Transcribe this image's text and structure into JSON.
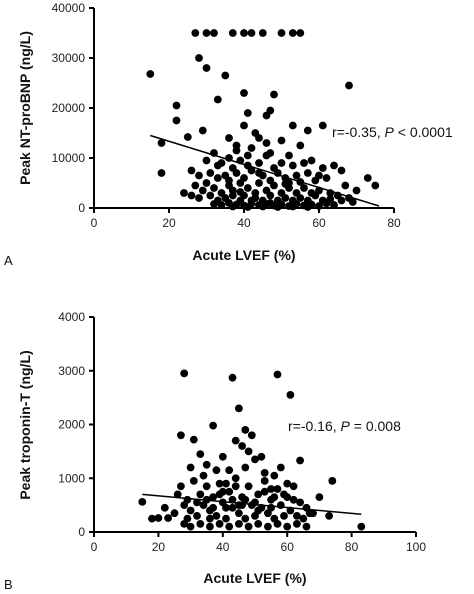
{
  "chart_data": [
    {
      "panel": "A",
      "type": "scatter",
      "xlabel": "Acute  LVEF (%)",
      "ylabel": "Peak NT-proBNP (ng/L)",
      "xlim": [
        0,
        80
      ],
      "ylim": [
        0,
        40000
      ],
      "xticks": [
        "0",
        "20",
        "40",
        "60",
        "80"
      ],
      "yticks": [
        "0",
        "10000",
        "20000",
        "30000",
        "40000"
      ],
      "annotation": {
        "r": "r=-0.35,",
        "p_label": "P",
        "p_value": "< 0.0001"
      },
      "regression": {
        "x": [
          15,
          76
        ],
        "y": [
          14500,
          400
        ]
      },
      "points": [
        [
          27,
          35000
        ],
        [
          30,
          35000
        ],
        [
          32,
          35000
        ],
        [
          37,
          35000
        ],
        [
          40,
          35000
        ],
        [
          42,
          35000
        ],
        [
          45,
          35000
        ],
        [
          50,
          35000
        ],
        [
          53,
          35000
        ],
        [
          55,
          35000
        ],
        [
          15,
          26800
        ],
        [
          28,
          30000
        ],
        [
          30,
          28000
        ],
        [
          35,
          26500
        ],
        [
          22,
          20500
        ],
        [
          22,
          17500
        ],
        [
          40,
          23000
        ],
        [
          48,
          22700
        ],
        [
          33,
          21700
        ],
        [
          47,
          19500
        ],
        [
          41,
          19000
        ],
        [
          46,
          18500
        ],
        [
          68,
          24500
        ],
        [
          29,
          15500
        ],
        [
          25,
          14200
        ],
        [
          36,
          14000
        ],
        [
          44,
          14000
        ],
        [
          50,
          13500
        ],
        [
          18,
          13000
        ],
        [
          32,
          11000
        ],
        [
          38,
          11500
        ],
        [
          42,
          12000
        ],
        [
          47,
          11000
        ],
        [
          52,
          10500
        ],
        [
          55,
          12500
        ],
        [
          40,
          16500
        ],
        [
          43,
          15000
        ],
        [
          30,
          9500
        ],
        [
          34,
          9000
        ],
        [
          36,
          10000
        ],
        [
          39,
          9500
        ],
        [
          41,
          8500
        ],
        [
          44,
          9000
        ],
        [
          46,
          10500
        ],
        [
          48,
          8000
        ],
        [
          50,
          9000
        ],
        [
          53,
          8500
        ],
        [
          56,
          9000
        ],
        [
          58,
          9500
        ],
        [
          61,
          8000
        ],
        [
          64,
          8500
        ],
        [
          66,
          7500
        ],
        [
          57,
          15500
        ],
        [
          61,
          16500
        ],
        [
          53,
          16500
        ],
        [
          18,
          7000
        ],
        [
          26,
          7500
        ],
        [
          28,
          6500
        ],
        [
          31,
          7000
        ],
        [
          33,
          6000
        ],
        [
          35,
          6500
        ],
        [
          37,
          8000
        ],
        [
          38,
          7000
        ],
        [
          40,
          6000
        ],
        [
          42,
          7500
        ],
        [
          45,
          6500
        ],
        [
          47,
          5500
        ],
        [
          49,
          7000
        ],
        [
          51,
          6000
        ],
        [
          52,
          5000
        ],
        [
          54,
          6500
        ],
        [
          57,
          7000
        ],
        [
          59,
          5500
        ],
        [
          62,
          6000
        ],
        [
          67,
          4500
        ],
        [
          70,
          3500
        ],
        [
          73,
          6000
        ],
        [
          75,
          4500
        ],
        [
          27,
          4500
        ],
        [
          29,
          3500
        ],
        [
          30,
          5000
        ],
        [
          32,
          4000
        ],
        [
          34,
          3000
        ],
        [
          36,
          4500
        ],
        [
          37,
          3500
        ],
        [
          39,
          5000
        ],
        [
          41,
          4000
        ],
        [
          43,
          3000
        ],
        [
          44,
          5000
        ],
        [
          46,
          3500
        ],
        [
          48,
          4500
        ],
        [
          50,
          3000
        ],
        [
          52,
          4000
        ],
        [
          54,
          3000
        ],
        [
          56,
          4000
        ],
        [
          58,
          3000
        ],
        [
          60,
          3500
        ],
        [
          63,
          3000
        ],
        [
          65,
          2500
        ],
        [
          68,
          2000
        ],
        [
          24,
          3000
        ],
        [
          26,
          2500
        ],
        [
          28,
          2000
        ],
        [
          31,
          2500
        ],
        [
          33,
          1500
        ],
        [
          35,
          2000
        ],
        [
          37,
          2500
        ],
        [
          39,
          1500
        ],
        [
          40,
          2500
        ],
        [
          42,
          1500
        ],
        [
          43,
          2000
        ],
        [
          45,
          1500
        ],
        [
          47,
          2500
        ],
        [
          49,
          1500
        ],
        [
          51,
          2000
        ],
        [
          53,
          1500
        ],
        [
          55,
          2000
        ],
        [
          57,
          1500
        ],
        [
          59,
          2500
        ],
        [
          61,
          1500
        ],
        [
          63,
          1800
        ],
        [
          66,
          1500
        ],
        [
          69,
          1200
        ],
        [
          32,
          800
        ],
        [
          34,
          600
        ],
        [
          36,
          1000
        ],
        [
          38,
          700
        ],
        [
          40,
          500
        ],
        [
          42,
          900
        ],
        [
          44,
          600
        ],
        [
          46,
          800
        ],
        [
          48,
          500
        ],
        [
          50,
          700
        ],
        [
          52,
          400
        ],
        [
          54,
          800
        ],
        [
          56,
          500
        ],
        [
          58,
          700
        ],
        [
          60,
          400
        ],
        [
          62,
          900
        ],
        [
          64,
          600
        ],
        [
          37,
          300
        ],
        [
          41,
          200
        ],
        [
          45,
          300
        ],
        [
          49,
          200
        ],
        [
          53,
          300
        ],
        [
          57,
          200
        ],
        [
          47,
          1000
        ],
        [
          39,
          3200
        ],
        [
          51,
          4800
        ],
        [
          44,
          7000
        ],
        [
          36,
          5500
        ],
        [
          55,
          5200
        ],
        [
          60,
          6500
        ],
        [
          38,
          12500
        ],
        [
          46,
          13000
        ],
        [
          33,
          8500
        ],
        [
          41,
          10500
        ]
      ]
    },
    {
      "panel": "B",
      "type": "scatter",
      "xlabel": "Acute LVEF (%)",
      "ylabel": "Peak troponin-T (ng/L)",
      "xlim": [
        0,
        100
      ],
      "ylim": [
        0,
        4000
      ],
      "xticks": [
        "0",
        "20",
        "40",
        "60",
        "80",
        "100"
      ],
      "yticks": [
        "0",
        "1000",
        "2000",
        "3000",
        "4000"
      ],
      "annotation": {
        "r": "r=-0.16,",
        "p_label": "P",
        "p_value": "= 0.008"
      },
      "regression": {
        "x": [
          15,
          83
        ],
        "y": [
          700,
          330
        ]
      },
      "points": [
        [
          28,
          2950
        ],
        [
          43,
          2870
        ],
        [
          57,
          2930
        ],
        [
          61,
          2550
        ],
        [
          45,
          2300
        ],
        [
          27,
          1800
        ],
        [
          31,
          1720
        ],
        [
          37,
          1980
        ],
        [
          44,
          1700
        ],
        [
          46,
          1600
        ],
        [
          48,
          1500
        ],
        [
          33,
          1450
        ],
        [
          40,
          1400
        ],
        [
          50,
          1350
        ],
        [
          64,
          1330
        ],
        [
          30,
          1200
        ],
        [
          35,
          1250
        ],
        [
          42,
          1150
        ],
        [
          47,
          1200
        ],
        [
          53,
          1100
        ],
        [
          56,
          1050
        ],
        [
          74,
          950
        ],
        [
          15,
          560
        ],
        [
          20,
          260
        ],
        [
          23,
          260
        ],
        [
          26,
          700
        ],
        [
          27,
          850
        ],
        [
          28,
          500
        ],
        [
          29,
          600
        ],
        [
          30,
          400
        ],
        [
          31,
          950
        ],
        [
          32,
          300
        ],
        [
          33,
          700
        ],
        [
          34,
          500
        ],
        [
          35,
          850
        ],
        [
          36,
          400
        ],
        [
          37,
          650
        ],
        [
          38,
          300
        ],
        [
          39,
          900
        ],
        [
          40,
          550
        ],
        [
          41,
          250
        ],
        [
          42,
          750
        ],
        [
          43,
          450
        ],
        [
          44,
          1000
        ],
        [
          45,
          350
        ],
        [
          46,
          650
        ],
        [
          47,
          250
        ],
        [
          48,
          850
        ],
        [
          49,
          500
        ],
        [
          50,
          300
        ],
        [
          51,
          700
        ],
        [
          52,
          450
        ],
        [
          53,
          950
        ],
        [
          54,
          350
        ],
        [
          55,
          600
        ],
        [
          56,
          250
        ],
        [
          57,
          800
        ],
        [
          58,
          500
        ],
        [
          59,
          300
        ],
        [
          60,
          650
        ],
        [
          61,
          400
        ],
        [
          62,
          850
        ],
        [
          63,
          300
        ],
        [
          64,
          550
        ],
        [
          65,
          250
        ],
        [
          66,
          450
        ],
        [
          68,
          350
        ],
        [
          70,
          650
        ],
        [
          73,
          300
        ],
        [
          83,
          100
        ],
        [
          18,
          250
        ],
        [
          22,
          450
        ],
        [
          25,
          350
        ],
        [
          28,
          150
        ],
        [
          30,
          100
        ],
        [
          33,
          150
        ],
        [
          36,
          100
        ],
        [
          39,
          150
        ],
        [
          42,
          100
        ],
        [
          45,
          150
        ],
        [
          48,
          100
        ],
        [
          51,
          150
        ],
        [
          54,
          100
        ],
        [
          57,
          150
        ],
        [
          60,
          100
        ],
        [
          63,
          150
        ],
        [
          66,
          100
        ],
        [
          34,
          1050
        ],
        [
          38,
          1150
        ],
        [
          41,
          900
        ],
        [
          47,
          1900
        ],
        [
          49,
          1800
        ],
        [
          52,
          1400
        ],
        [
          55,
          800
        ],
        [
          58,
          1200
        ],
        [
          60,
          900
        ],
        [
          35,
          600
        ],
        [
          37,
          450
        ],
        [
          40,
          750
        ],
        [
          43,
          600
        ],
        [
          46,
          500
        ],
        [
          50,
          550
        ],
        [
          53,
          750
        ],
        [
          56,
          650
        ],
        [
          59,
          700
        ],
        [
          62,
          600
        ],
        [
          44,
          850
        ],
        [
          36,
          250
        ],
        [
          47,
          600
        ],
        [
          41,
          450
        ],
        [
          39,
          700
        ],
        [
          45,
          500
        ],
        [
          51,
          400
        ],
        [
          55,
          450
        ],
        [
          29,
          250
        ],
        [
          32,
          550
        ],
        [
          67,
          350
        ]
      ]
    }
  ],
  "panel_labels": [
    "A",
    "B"
  ]
}
